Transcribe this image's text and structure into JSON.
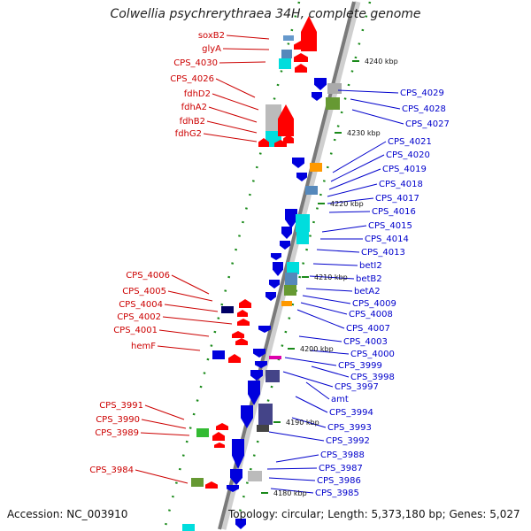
{
  "title": "Colwellia psychrerythraea 34H, complete genome",
  "footer": {
    "accession": "Accession: NC_003910",
    "topology": "Topology: circular; Length: 5,373,180 bp; Genes: 5,027"
  },
  "kbp_labels": [
    "4240 kbp",
    "4230 kbp",
    "4220 kbp",
    "4210 kbp",
    "4200 kbp",
    "4190 kbp",
    "4180 kbp"
  ],
  "left_genes": [
    "soxB2",
    "glyA",
    "CPS_4030",
    "CPS_4026",
    "fdhD2",
    "fdhA2",
    "fdhB2",
    "fdhG2",
    "CPS_4006",
    "CPS_4005",
    "CPS_4004",
    "CPS_4002",
    "CPS_4001",
    "hemF",
    "CPS_3991",
    "CPS_3990",
    "CPS_3989",
    "CPS_3984"
  ],
  "right_genes": [
    "CPS_4029",
    "CPS_4028",
    "CPS_4027",
    "CPS_4021",
    "CPS_4020",
    "CPS_4019",
    "CPS_4018",
    "CPS_4017",
    "CPS_4016",
    "CPS_4015",
    "CPS_4014",
    "CPS_4013",
    "betI2",
    "betB2",
    "betA2",
    "CPS_4009",
    "CPS_4008",
    "CPS_4007",
    "CPS_4003",
    "CPS_4000",
    "CPS_3999",
    "CPS_3998",
    "CPS_3997",
    "amt",
    "CPS_3994",
    "CPS_3993",
    "CPS_3992",
    "CPS_3988",
    "CPS_3987",
    "CPS_3986",
    "CPS_3985"
  ]
}
